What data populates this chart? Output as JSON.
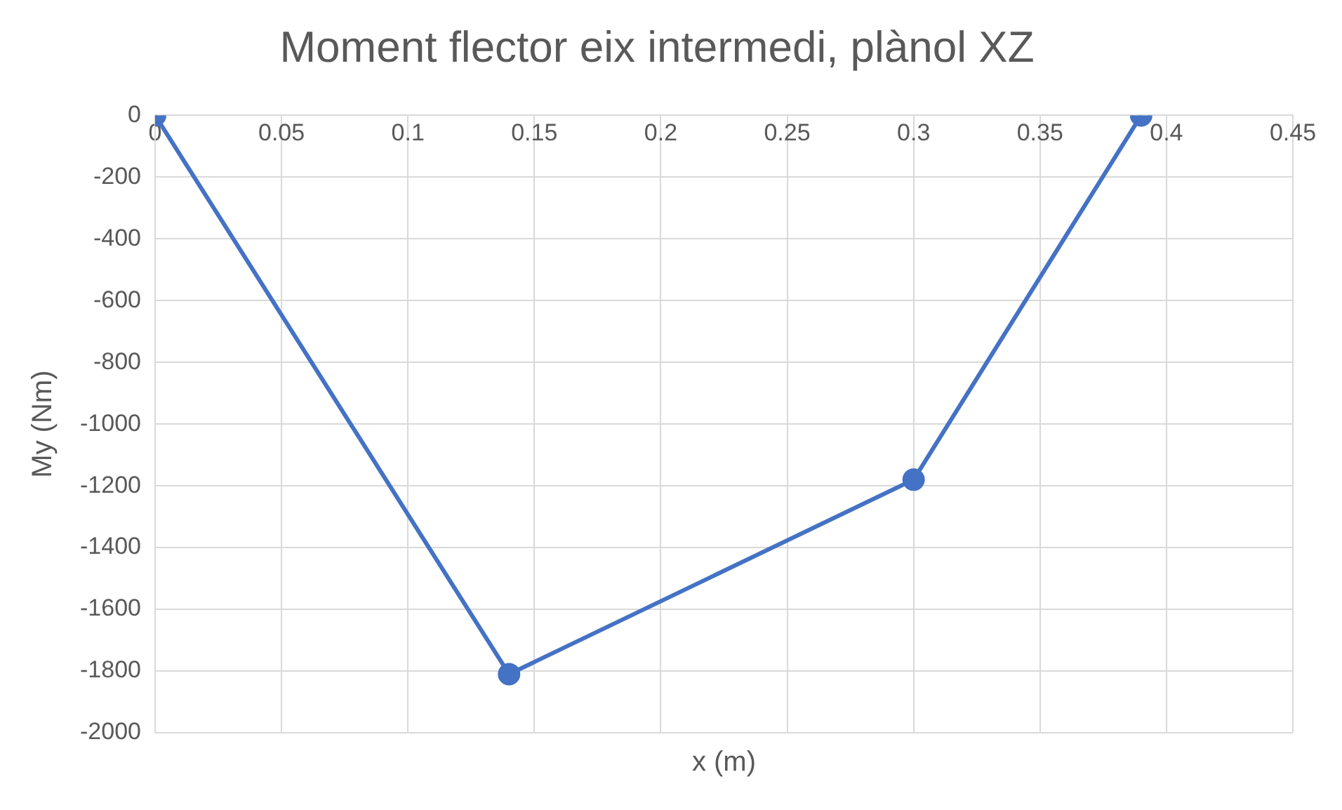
{
  "chart_data": {
    "type": "line",
    "title": "Moment flector eix intermedi, plànol XZ",
    "xlabel": "x (m)",
    "ylabel": "My (Nm)",
    "x": [
      0,
      0.14,
      0.3,
      0.39
    ],
    "series": [
      {
        "color": "#4472c4",
        "values": [
          0,
          -1810,
          -1180,
          0
        ]
      }
    ],
    "xlim": [
      0,
      0.45
    ],
    "xticks": [
      0,
      0.05,
      0.1,
      0.15,
      0.2,
      0.25,
      0.3,
      0.35,
      0.4,
      0.45
    ],
    "ylim": [
      -2000,
      0
    ],
    "yticks": [
      -2000,
      -1800,
      -1600,
      -1400,
      -1200,
      -1000,
      -800,
      -600,
      -400,
      -200,
      0
    ],
    "grid": true,
    "legend": false,
    "marker": "circle",
    "line_style": "solid"
  }
}
